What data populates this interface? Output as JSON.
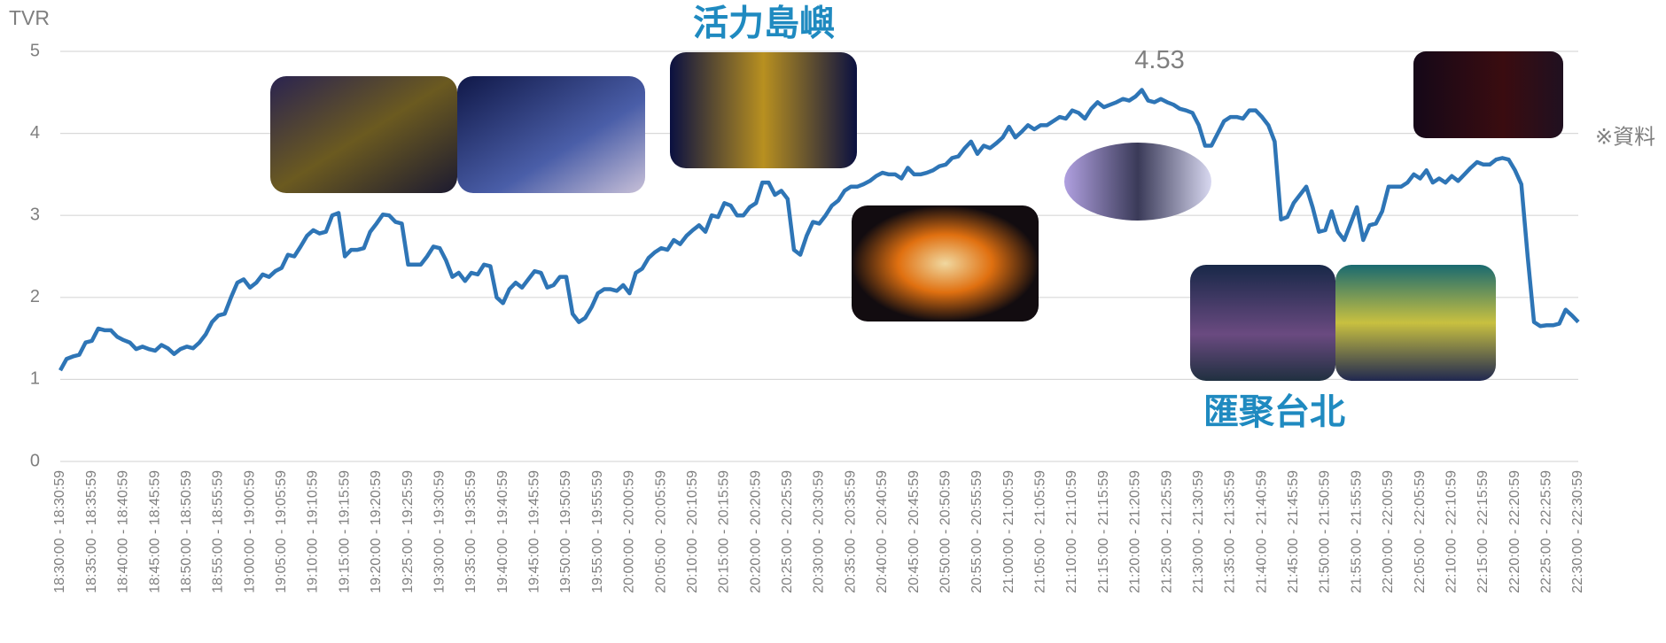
{
  "chart_data": {
    "type": "line",
    "y_label": "TVR",
    "annotations": [
      "活力島嶼",
      "匯聚台北"
    ],
    "note": "※資料",
    "categories": [
      "18:30:00 - 18:30:59",
      null,
      null,
      null,
      null,
      "18:35:00 - 18:35:59",
      null,
      null,
      null,
      null,
      "18:40:00 - 18:40:59",
      null,
      null,
      null,
      null,
      "18:45:00 - 18:45:59",
      null,
      null,
      null,
      null,
      "18:50:00 - 18:50:59",
      null,
      null,
      null,
      null,
      "18:55:00 - 18:55:59",
      null,
      null,
      null,
      null,
      "19:00:00 - 19:00:59",
      null,
      null,
      null,
      null,
      "19:05:00 - 19:05:59",
      null,
      null,
      null,
      null,
      "19:10:00 - 19:10:59",
      null,
      null,
      null,
      null,
      "19:15:00 - 19:15:59",
      null,
      null,
      null,
      null,
      "19:20:00 - 19:20:59",
      null,
      null,
      null,
      null,
      "19:25:00 - 19:25:59",
      null,
      null,
      null,
      null,
      "19:30:00 - 19:30:59",
      null,
      null,
      null,
      null,
      "19:35:00 - 19:35:59",
      null,
      null,
      null,
      null,
      "19:40:00 - 19:40:59",
      null,
      null,
      null,
      null,
      "19:45:00 - 19:45:59",
      null,
      null,
      null,
      null,
      "19:50:00 - 19:50:59",
      null,
      null,
      null,
      null,
      "19:55:00 - 19:55:59",
      null,
      null,
      null,
      null,
      "20:00:00 - 20:00:59",
      null,
      null,
      null,
      null,
      "20:05:00 - 20:05:59",
      null,
      null,
      null,
      null,
      "20:10:00 - 20:10:59",
      null,
      null,
      null,
      null,
      "20:15:00 - 20:15:59",
      null,
      null,
      null,
      null,
      "20:20:00 - 20:20:59",
      null,
      null,
      null,
      null,
      "20:25:00 - 20:25:59",
      null,
      null,
      null,
      null,
      "20:30:00 - 20:30:59",
      null,
      null,
      null,
      null,
      "20:35:00 - 20:35:59",
      null,
      null,
      null,
      null,
      "20:40:00 - 20:40:59",
      null,
      null,
      null,
      null,
      "20:45:00 - 20:45:59",
      null,
      null,
      null,
      null,
      "20:50:00 - 20:50:59",
      null,
      null,
      null,
      null,
      "20:55:00 - 20:55:59",
      null,
      null,
      null,
      null,
      "21:00:00 - 21:00:59",
      null,
      null,
      null,
      null,
      "21:05:00 - 21:05:59",
      null,
      null,
      null,
      null,
      "21:10:00 - 21:10:59",
      null,
      null,
      null,
      null,
      "21:15:00 - 21:15:59",
      null,
      null,
      null,
      null,
      "21:20:00 - 21:20:59",
      null,
      null,
      null,
      null,
      "21:25:00 - 21:25:59",
      null,
      null,
      null,
      null,
      "21:30:00 - 21:30:59",
      null,
      null,
      null,
      null,
      "21:35:00 - 21:35:59",
      null,
      null,
      null,
      null,
      "21:40:00 - 21:40:59",
      null,
      null,
      null,
      null,
      "21:45:00 - 21:45:59",
      null,
      null,
      null,
      null,
      "21:50:00 - 21:50:59",
      null,
      null,
      null,
      null,
      "21:55:00 - 21:55:59",
      null,
      null,
      null,
      null,
      "22:00:00 - 22:00:59",
      null,
      null,
      null,
      null,
      "22:05:00 - 22:05:59",
      null,
      null,
      null,
      null,
      "22:10:00 - 22:10:59",
      null,
      null,
      null,
      null,
      "22:15:00 - 22:15:59",
      null,
      null,
      null,
      null,
      "22:20:00 - 22:20:59",
      null,
      null,
      null,
      null,
      "22:25:00 - 22:25:59",
      null,
      null,
      null,
      null,
      "22:30:00 - 22:30:59"
    ],
    "series": [
      {
        "color": "#2e75b6",
        "values": [
          1.11,
          1.25,
          1.28,
          1.3,
          1.45,
          1.47,
          1.62,
          1.6,
          1.6,
          1.52,
          1.48,
          1.45,
          1.37,
          1.4,
          1.37,
          1.35,
          1.42,
          1.38,
          1.31,
          1.37,
          1.4,
          1.38,
          1.45,
          1.55,
          1.7,
          1.78,
          1.8,
          2.0,
          2.18,
          2.22,
          2.12,
          2.18,
          2.28,
          2.25,
          2.32,
          2.36,
          2.52,
          2.5,
          2.62,
          2.75,
          2.82,
          2.78,
          2.8,
          3.0,
          3.03,
          2.5,
          2.58,
          2.58,
          2.6,
          2.8,
          2.9,
          3.01,
          3.0,
          2.92,
          2.9,
          2.4,
          2.4,
          2.4,
          2.5,
          2.62,
          2.6,
          2.45,
          2.25,
          2.3,
          2.2,
          2.3,
          2.28,
          2.4,
          2.38,
          2.0,
          1.93,
          2.1,
          2.18,
          2.12,
          2.22,
          2.32,
          2.3,
          2.12,
          2.15,
          2.25,
          2.25,
          1.8,
          1.7,
          1.75,
          1.88,
          2.05,
          2.1,
          2.1,
          2.08,
          2.15,
          2.05,
          2.3,
          2.35,
          2.48,
          2.55,
          2.6,
          2.58,
          2.7,
          2.65,
          2.75,
          2.82,
          2.88,
          2.8,
          3.0,
          2.98,
          3.15,
          3.12,
          3.0,
          3.0,
          3.1,
          3.15,
          3.4,
          3.4,
          3.25,
          3.3,
          3.2,
          2.58,
          2.52,
          2.75,
          2.92,
          2.9,
          3.0,
          3.12,
          3.18,
          3.3,
          3.35,
          3.35,
          3.38,
          3.42,
          3.48,
          3.52,
          3.5,
          3.5,
          3.45,
          3.58,
          3.5,
          3.5,
          3.52,
          3.55,
          3.6,
          3.62,
          3.7,
          3.72,
          3.82,
          3.9,
          3.75,
          3.85,
          3.82,
          3.88,
          3.95,
          4.08,
          3.95,
          4.02,
          4.1,
          4.05,
          4.1,
          4.1,
          4.15,
          4.2,
          4.18,
          4.28,
          4.25,
          4.18,
          4.3,
          4.38,
          4.32,
          4.35,
          4.38,
          4.42,
          4.4,
          4.45,
          4.53,
          4.4,
          4.38,
          4.42,
          4.38,
          4.35,
          4.3,
          4.28,
          4.25,
          4.1,
          3.85,
          3.85,
          4.0,
          4.15,
          4.2,
          4.2,
          4.18,
          4.28,
          4.28,
          4.2,
          4.1,
          3.9,
          2.95,
          2.98,
          3.15,
          3.25,
          3.35,
          3.1,
          2.8,
          2.82,
          3.05,
          2.8,
          2.7,
          2.9,
          3.1,
          2.7,
          2.88,
          2.9,
          3.05,
          3.35,
          3.35,
          3.35,
          3.4,
          3.5,
          3.45,
          3.55,
          3.4,
          3.45,
          3.4,
          3.48,
          3.42,
          3.5,
          3.58,
          3.65,
          3.62,
          3.62,
          3.68,
          3.7,
          3.68,
          3.55,
          3.38,
          2.5,
          1.7,
          1.65,
          1.66,
          1.66,
          1.68,
          1.85,
          1.78,
          1.7
        ]
      }
    ],
    "ylim": [
      0,
      5
    ],
    "yticks": [
      0,
      1,
      2,
      3,
      4,
      5
    ],
    "grid": true
  }
}
